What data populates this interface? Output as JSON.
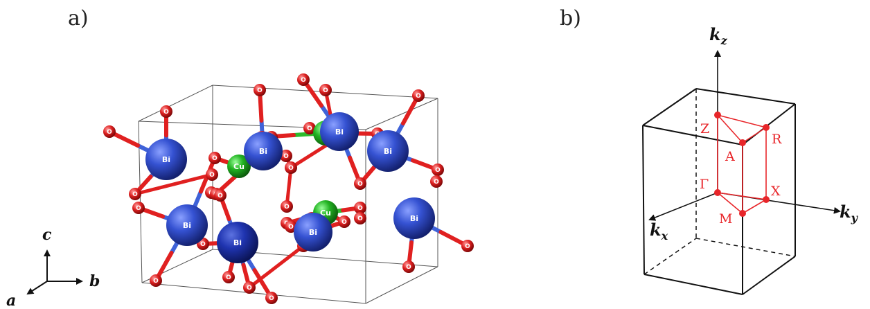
{
  "panel_a": {
    "label": "a)",
    "axes": {
      "c": "c",
      "b": "b",
      "a": "a"
    },
    "atoms": {
      "bismuth": "Bi",
      "copper": "Cu",
      "oxygen": "O"
    },
    "colors": {
      "bismuth": "#2f4fc8",
      "copper": "#2dbb2d",
      "oxygen": "#e02020",
      "bond_blue": "#3f62d8",
      "cell_line": "#555555"
    }
  },
  "panel_b": {
    "label": "b)",
    "axes": {
      "kz_main": "k",
      "kz_sub": "z",
      "kx_main": "k",
      "kx_sub": "x",
      "ky_main": "k",
      "ky_sub": "y"
    },
    "points": {
      "Z": "Z",
      "R": "R",
      "A": "A",
      "Gamma": "Γ",
      "X": "X",
      "M": "M"
    },
    "colors": {
      "bz": "#e8262a",
      "box": "#111111"
    }
  }
}
